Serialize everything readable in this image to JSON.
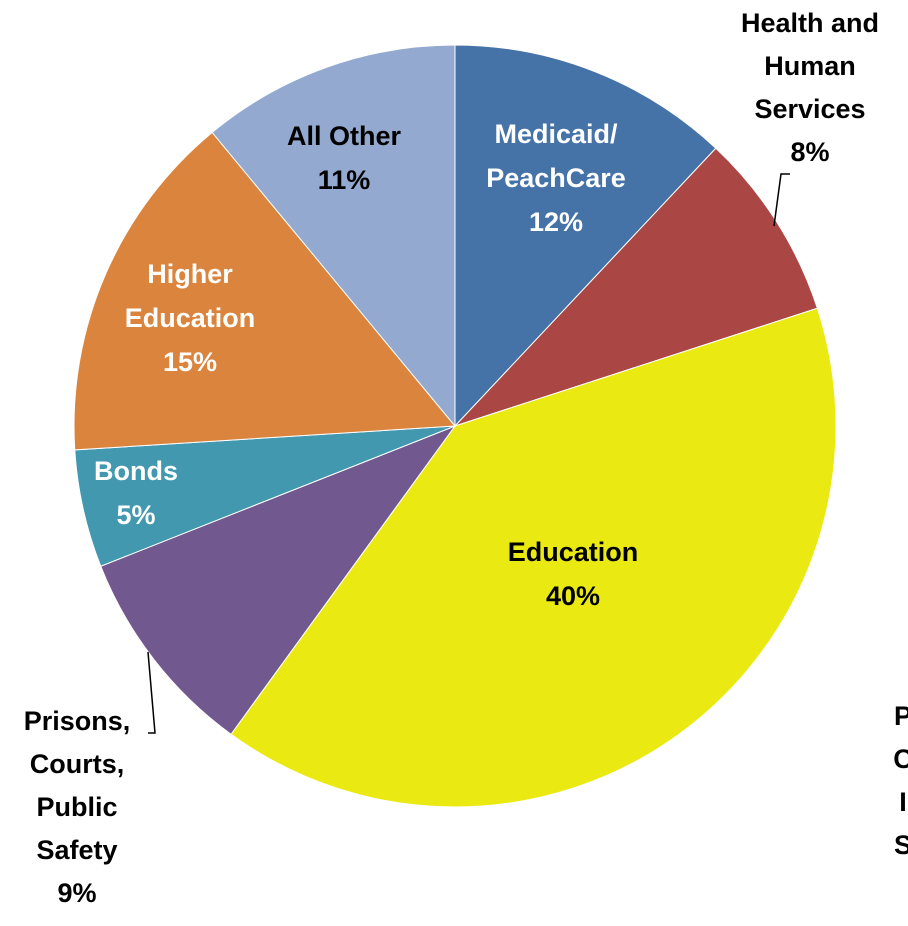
{
  "chart_data": {
    "type": "pie",
    "title": "",
    "slices": [
      {
        "name": "Medicaid/ PeachCare",
        "value": 12,
        "label_lines": [
          "Medicaid/",
          "PeachCare",
          "12%"
        ],
        "color": "#4572A7",
        "label_color": "#FFFFFF",
        "leader": false
      },
      {
        "name": "Health and Human Services",
        "value": 8,
        "label_lines": [
          "Health and",
          "Human",
          "Services",
          "8%"
        ],
        "color": "#AA4643",
        "label_color": "#000000",
        "leader": true
      },
      {
        "name": "Education",
        "value": 40,
        "label_lines": [
          "Education",
          "40%"
        ],
        "color": "#EAEA12",
        "label_color": "#000000",
        "leader": false
      },
      {
        "name": "Prisons, Courts, Public Safety",
        "value": 9,
        "label_lines": [
          "Prisons,",
          "Courts,",
          "Public",
          "Safety",
          "9%"
        ],
        "color": "#71588F",
        "label_color": "#000000",
        "leader": true
      },
      {
        "name": "Bonds",
        "value": 5,
        "label_lines": [
          "Bonds",
          "5%"
        ],
        "color": "#4198AF",
        "label_color": "#FFFFFF",
        "leader": false
      },
      {
        "name": "Higher Education",
        "value": 15,
        "label_lines": [
          "Higher",
          "Education",
          "15%"
        ],
        "color": "#DB843D",
        "label_color": "#FFFFFF",
        "leader": false
      },
      {
        "name": "All Other",
        "value": 11,
        "label_lines": [
          "All Other",
          "11%"
        ],
        "color": "#93A9CF",
        "label_color": "#000000",
        "leader": false
      }
    ],
    "partial_label_lines": [
      "P",
      "C",
      "I",
      "S"
    ]
  }
}
